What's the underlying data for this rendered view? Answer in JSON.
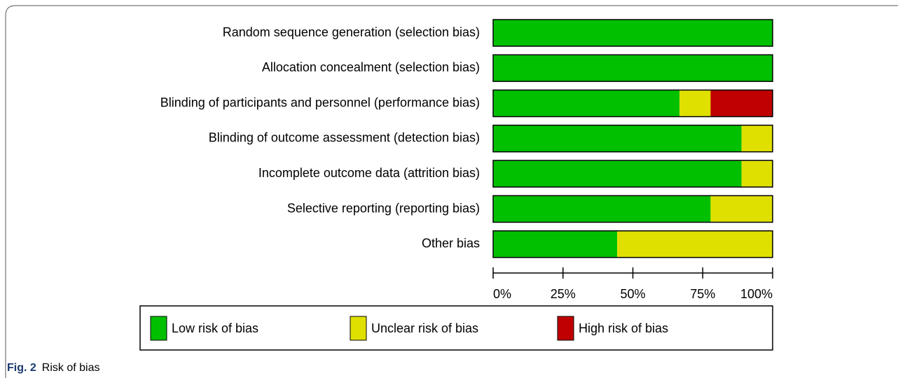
{
  "chart_data": {
    "type": "stacked-bar-horizontal",
    "categories": [
      "Random sequence generation (selection bias)",
      "Allocation concealment (selection bias)",
      "Blinding of participants and personnel (performance bias)",
      "Blinding of outcome assessment (detection bias)",
      "Incomplete outcome data (attrition bias)",
      "Selective reporting (reporting bias)",
      "Other bias"
    ],
    "series": [
      {
        "name": "Low risk of bias",
        "color": "#00c000",
        "values": [
          100,
          100,
          66.7,
          88.9,
          88.9,
          77.8,
          44.4
        ]
      },
      {
        "name": "Unclear risk of bias",
        "color": "#e0e000",
        "values": [
          0,
          0,
          11.1,
          11.1,
          11.1,
          22.2,
          55.6
        ]
      },
      {
        "name": "High risk of bias",
        "color": "#c00000",
        "values": [
          0,
          0,
          22.2,
          0,
          0,
          0,
          0
        ]
      }
    ],
    "xlim": [
      0,
      100
    ],
    "xticks": [
      {
        "value": 0,
        "label": "0%"
      },
      {
        "value": 25,
        "label": "25%"
      },
      {
        "value": 50,
        "label": "50%"
      },
      {
        "value": 75,
        "label": "75%"
      },
      {
        "value": 100,
        "label": "100%"
      }
    ],
    "legend": "bottom"
  },
  "figure_caption": {
    "label": "Fig. 2",
    "text": "Risk of bias"
  }
}
